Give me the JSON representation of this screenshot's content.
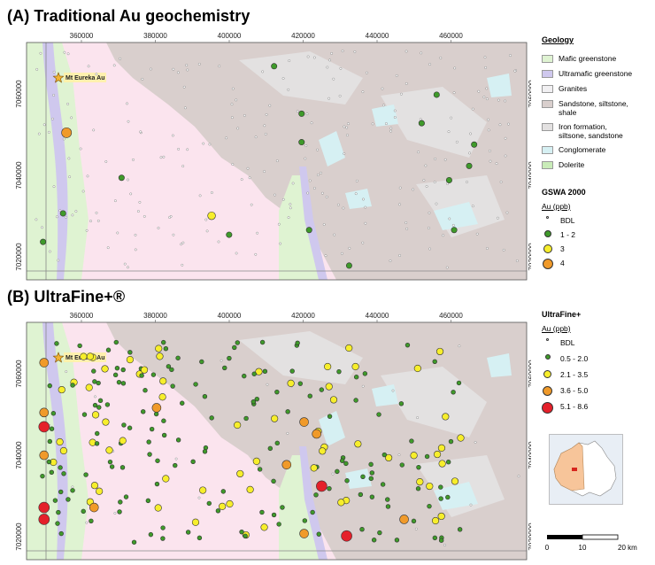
{
  "panelA": {
    "title": "(A) Traditional Au geochemistry",
    "locality": "Mt Eureka Au",
    "x_ticks": [
      "360000",
      "380000",
      "400000",
      "420000",
      "440000",
      "460000"
    ],
    "y_ticks": [
      "7060000",
      "7040000",
      "7020000"
    ],
    "legend": {
      "geology_title": "Geology",
      "geology": [
        {
          "label": "Mafic greenstone",
          "color": "#dff3d2"
        },
        {
          "label": "Ultramafic greenstone",
          "color": "#cfc8ee"
        },
        {
          "label": "Granites",
          "color": "#f1f0f2"
        },
        {
          "label": "Sandstone, siltstone,\nshale",
          "color": "#d9cfcd"
        },
        {
          "label": "Iron formation,\nsiltsone, sandstone",
          "color": "#e3e1e1"
        },
        {
          "label": "Conglomerate",
          "color": "#d6f0f3"
        },
        {
          "label": "Dolerite",
          "color": "#c9ecb8"
        }
      ],
      "au_title": "GSWA 2000",
      "au_unit": "Au (ppb)",
      "au_classes": [
        {
          "label": "BDL",
          "color": "#ffffff"
        },
        {
          "label": "1 - 2",
          "color": "#3f9a2a"
        },
        {
          "label": "3",
          "color": "#f7ee2c"
        },
        {
          "label": "4",
          "color": "#f09a2a"
        }
      ]
    }
  },
  "panelB": {
    "title": "(B) UltraFine+®",
    "locality": "Mt Eureka Au",
    "x_ticks": [
      "360000",
      "380000",
      "400000",
      "420000",
      "440000",
      "460000"
    ],
    "y_ticks": [
      "7060000",
      "7040000",
      "7020000"
    ],
    "legend": {
      "au_title": "UltraFine+",
      "au_unit": "Au (ppb)",
      "au_classes": [
        {
          "label": "BDL",
          "color": "#ffffff"
        },
        {
          "label": "0.5 - 2.0",
          "color": "#3f9a2a"
        },
        {
          "label": "2.1 - 3.5",
          "color": "#f7ee2c"
        },
        {
          "label": "3.6 - 5.0",
          "color": "#f09a2a"
        },
        {
          "label": "5.1 - 8.6",
          "color": "#e4202a"
        }
      ]
    },
    "scale_labels": [
      "0",
      "10",
      "20 km"
    ]
  },
  "colors": {
    "granite_pink": "#fbe4ee",
    "sediment": "#d9cfcd",
    "mafic": "#dff3d2",
    "ultramafic": "#cfc8ee",
    "conglomerate": "#d6f0f3",
    "iron": "#e3e1e1"
  }
}
